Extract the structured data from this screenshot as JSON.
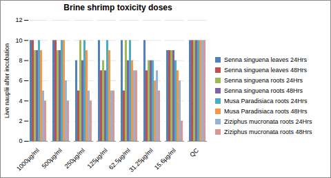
{
  "chart_data": {
    "type": "bar",
    "title": "Brine shrimp toxicity doses",
    "ylabel": "Live nauplii after incubation",
    "categories": [
      "1000µg/ml",
      "500µg/ml",
      "250µg/ml",
      "125µg/ml",
      "62.5µg/ml",
      "31.25µg/ml",
      "15.6µg/ml",
      "QC"
    ],
    "series": [
      {
        "name": "Senna singuena leaves 24Hrs",
        "color": "#4f81bd",
        "values": [
          10,
          10,
          8,
          10,
          10,
          10,
          9,
          10
        ]
      },
      {
        "name": "Senna singuena leaves 48Hrs",
        "color": "#c0504d",
        "values": [
          10,
          10,
          5,
          7,
          5,
          7,
          9,
          10
        ]
      },
      {
        "name": "Senna singuena roots 24Hrs",
        "color": "#9bbb59",
        "values": [
          9,
          9,
          10,
          8,
          10,
          8,
          9,
          10
        ]
      },
      {
        "name": "Senna singuena roots 48Hrs",
        "color": "#8064a2",
        "values": [
          9,
          9,
          8,
          7,
          8,
          8,
          9,
          10
        ]
      },
      {
        "name": "Musa Paradisiaca roots 24Hrs",
        "color": "#4bacc6",
        "values": [
          10,
          10,
          10,
          10,
          10,
          8,
          8,
          10
        ]
      },
      {
        "name": "Musa Paradisiaca roots 48Hrs",
        "color": "#f79646",
        "values": [
          9,
          10,
          9,
          9,
          8,
          6,
          7,
          10
        ]
      },
      {
        "name": "Ziziphus mucronata roots 24Hrs",
        "color": "#95b3d7",
        "values": [
          5,
          6,
          5,
          5,
          7,
          7,
          6,
          10
        ]
      },
      {
        "name": "Ziziphus mucronata roots 48Hrs",
        "color": "#d99694",
        "values": [
          4,
          4,
          4,
          5,
          7,
          5,
          2,
          10
        ]
      }
    ],
    "ylim": [
      0,
      12
    ],
    "yticks": [
      0,
      2,
      4,
      6,
      8,
      10,
      12
    ],
    "grid": true,
    "legend": "right"
  }
}
